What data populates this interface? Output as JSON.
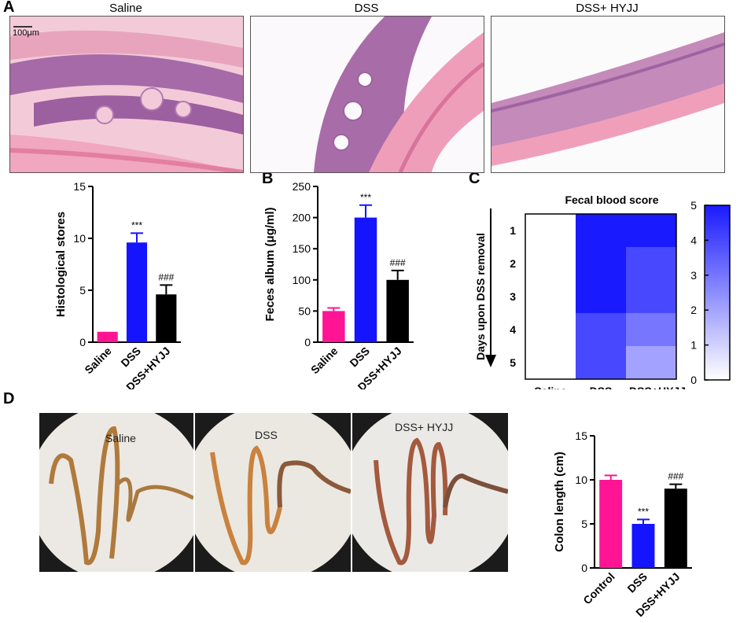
{
  "panels": {
    "a": "A",
    "b": "B",
    "c": "C",
    "d": "D"
  },
  "histology": {
    "titles": [
      "Saline",
      "DSS",
      "DSS+ HYJJ"
    ],
    "scale_bar": "100μm"
  },
  "photos": {
    "labels": [
      "Saline",
      "DSS",
      "DSS+ HYJJ"
    ]
  },
  "colors": {
    "saline": "#ff1493",
    "dss": "#1414ff",
    "hyjj": "#000000",
    "heat_min": "#ffffff",
    "heat_max": "#1a1aff"
  },
  "chart_data": [
    {
      "id": "histology_scores",
      "type": "bar",
      "categories": [
        "Saline",
        "DSS",
        "DSS+HYJJ"
      ],
      "values": [
        1.0,
        9.6,
        4.6
      ],
      "errors": [
        0,
        0.9,
        0.9
      ],
      "annotations": [
        "",
        "***",
        "###"
      ],
      "title": "",
      "xlabel": "",
      "ylabel": "Histological stores",
      "ylim": [
        0,
        15
      ],
      "yticks": [
        0,
        5,
        10,
        15
      ],
      "grid": false
    },
    {
      "id": "feces_albumin",
      "type": "bar",
      "categories": [
        "Saline",
        "DSS",
        "DSS+HYJJ"
      ],
      "values": [
        50,
        200,
        100
      ],
      "errors": [
        5,
        20,
        15
      ],
      "annotations": [
        "",
        "***",
        "###"
      ],
      "title": "",
      "xlabel": "",
      "ylabel": "Feces album (μg/ml)",
      "ylim": [
        0,
        250
      ],
      "yticks": [
        0,
        50,
        100,
        150,
        200,
        250
      ],
      "grid": false
    },
    {
      "id": "fecal_blood",
      "type": "heatmap",
      "title": "Fecal blood score",
      "columns": [
        "Saline",
        "DSS",
        "DSS+HYJJ"
      ],
      "rows": [
        "1",
        "2",
        "3",
        "4",
        "5"
      ],
      "ylabel": "Days upon DSS removal",
      "values": [
        [
          0,
          5,
          5
        ],
        [
          0,
          5,
          4
        ],
        [
          0,
          5,
          4
        ],
        [
          0,
          4,
          3
        ],
        [
          0,
          4,
          2
        ]
      ],
      "colorbar_range": [
        0,
        5
      ],
      "colorbar_ticks": [
        "0",
        "1",
        "2",
        "3",
        "4",
        "5"
      ]
    },
    {
      "id": "colon_length",
      "type": "bar",
      "categories": [
        "Control",
        "DSS",
        "DSS+HYJJ"
      ],
      "values": [
        10,
        5,
        9
      ],
      "errors": [
        0.5,
        0.5,
        0.5
      ],
      "annotations": [
        "",
        "***",
        "###"
      ],
      "title": "",
      "xlabel": "",
      "ylabel": "Colon length (cm)",
      "ylim": [
        0,
        15
      ],
      "yticks": [
        0,
        5,
        10,
        15
      ],
      "grid": false
    }
  ]
}
